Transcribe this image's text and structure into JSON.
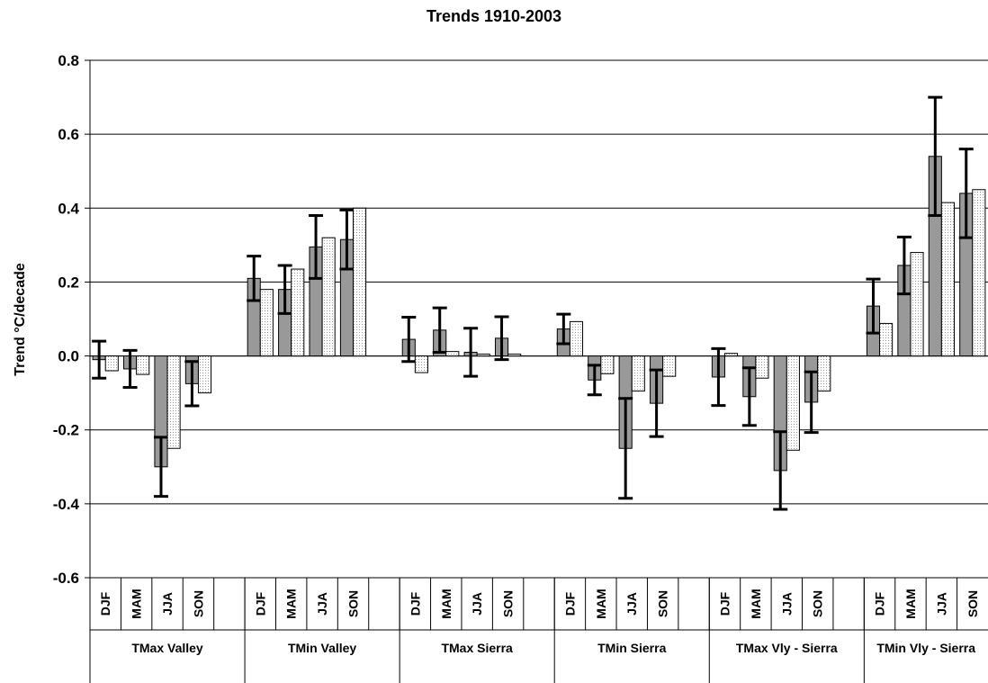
{
  "chart_data": {
    "type": "bar",
    "title": "Trends 1910-2003",
    "y_label": "Trend °C/decade",
    "categories": [
      "DJF",
      "MAM",
      "JJA",
      "SON",
      null,
      "DJF",
      "MAM",
      "JJA",
      "SON",
      null,
      "DJF",
      "MAM",
      "JJA",
      "SON",
      null,
      "DJF",
      "MAM",
      "JJA",
      "SON",
      null,
      "DJF",
      "MAM",
      "JJA",
      "SON",
      null,
      "DJF",
      "MAM",
      "JJA",
      "SON"
    ],
    "groups": [
      "TMax Valley",
      "TMin Valley",
      "TMax Sierra",
      "TMin Sierra",
      "TMax Vly - Sierra",
      "TMin Vly - Sierra"
    ],
    "series": [
      {
        "color": "#999999",
        "values": [
          -0.01,
          -0.035,
          -0.3,
          -0.075,
          null,
          0.21,
          0.18,
          0.295,
          0.315,
          null,
          0.045,
          0.07,
          0.01,
          0.048,
          null,
          0.073,
          -0.065,
          -0.25,
          -0.128,
          null,
          -0.057,
          -0.11,
          -0.31,
          -0.125,
          null,
          0.135,
          0.245,
          0.54,
          0.44
        ],
        "errors": [
          0.05,
          0.05,
          0.08,
          0.06,
          null,
          0.06,
          0.065,
          0.085,
          0.08,
          null,
          0.06,
          0.06,
          0.065,
          0.058,
          null,
          0.04,
          0.04,
          0.135,
          0.09,
          null,
          0.077,
          0.078,
          0.105,
          0.082,
          null,
          0.073,
          0.077,
          0.16,
          0.12
        ]
      },
      {
        "color": "#f2f2f2",
        "values": [
          -0.04,
          -0.05,
          -0.25,
          -0.1,
          null,
          0.18,
          0.235,
          0.32,
          0.4,
          null,
          -0.045,
          0.012,
          0.005,
          0.005,
          null,
          0.093,
          -0.048,
          -0.095,
          -0.055,
          null,
          0.007,
          -0.06,
          -0.255,
          -0.095,
          null,
          0.088,
          0.28,
          0.415,
          0.45
        ]
      }
    ],
    "ylim": [
      -0.6,
      0.8
    ],
    "yticks": [
      -0.6,
      -0.4,
      -0.2,
      {
        "value": 0,
        "label": "0.0"
      },
      0.2,
      0.4,
      0.6,
      0.8
    ],
    "grid": true
  }
}
